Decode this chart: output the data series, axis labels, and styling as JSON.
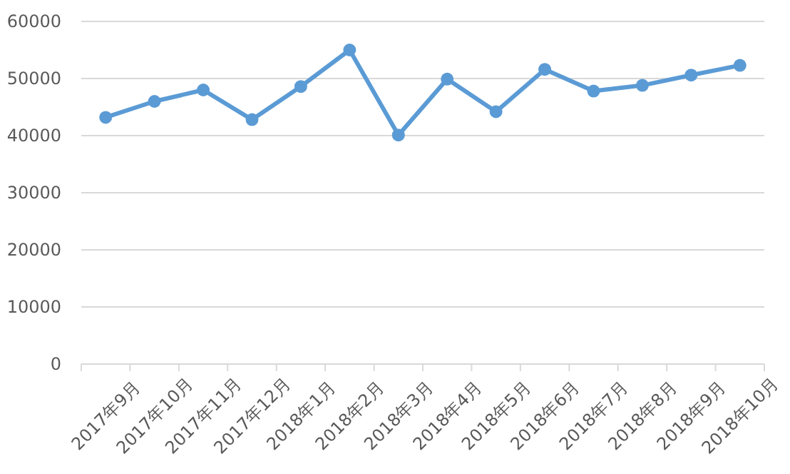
{
  "chart_data": {
    "type": "line",
    "categories": [
      "2017年9月",
      "2017年10月",
      "2017年11月",
      "2017年12月",
      "2018年1月",
      "2018年2月",
      "2018年3月",
      "2018年4月",
      "2018年5月",
      "2018年6月",
      "2018年7月",
      "2018年8月",
      "2018年9月",
      "2018年10月"
    ],
    "series": [
      {
        "color": "#5b9bd5",
        "values": [
          43200,
          46000,
          48000,
          42800,
          48600,
          55000,
          40100,
          49900,
          44200,
          51600,
          47800,
          48800,
          50600,
          52300
        ]
      }
    ],
    "ylim": [
      0,
      60000
    ],
    "yticks": [
      0,
      10000,
      20000,
      30000,
      40000,
      50000,
      60000
    ],
    "grid": "y",
    "marker": "circle",
    "line_style": "solid"
  }
}
